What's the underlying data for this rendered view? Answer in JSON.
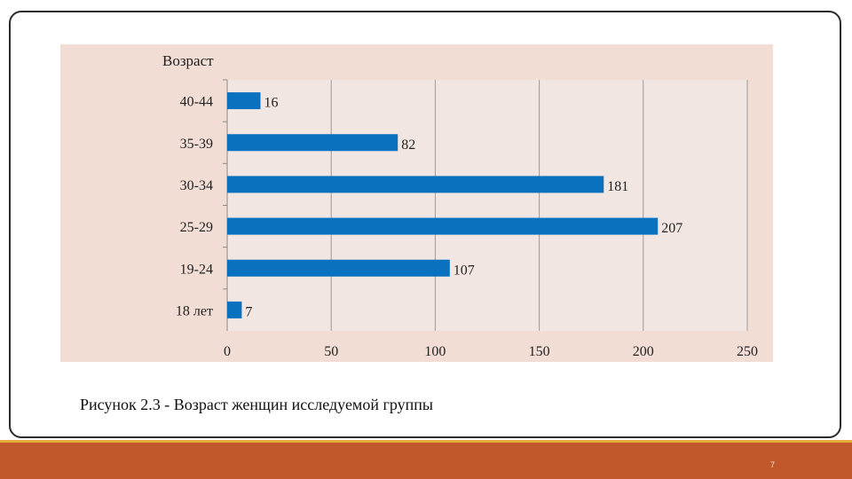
{
  "chart_data": {
    "type": "bar",
    "orientation": "horizontal",
    "title": "Возраст",
    "categories": [
      "40-44",
      "35-39",
      "30-34",
      "25-29",
      "19-24",
      "18 лет"
    ],
    "values": [
      16,
      82,
      181,
      207,
      107,
      7
    ],
    "xlim": [
      0,
      250
    ],
    "xticks": [
      "0",
      "50",
      "100",
      "150",
      "200",
      "250"
    ],
    "grid": true,
    "bar_color": "#0a70c0",
    "plot_background": "#f1e6e2",
    "background": "#f1ddd4"
  },
  "caption": "Рисунок  2.3 - Возраст женщин исследуемой группы",
  "page_number": "7",
  "colors": {
    "accent_bar": "#c0582b",
    "accent_line": "#e8a93d"
  }
}
